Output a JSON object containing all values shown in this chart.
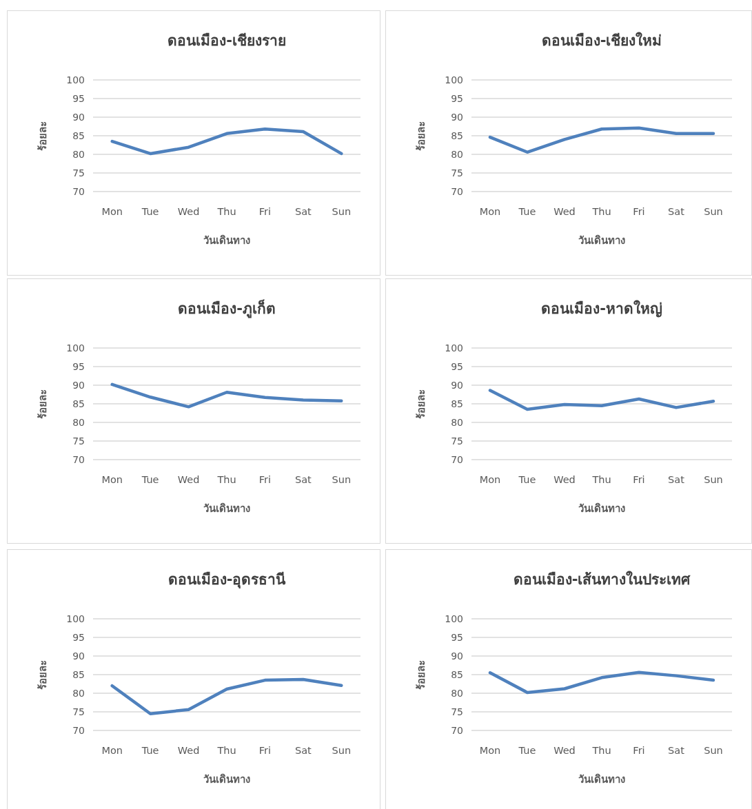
{
  "chart_data": [
    {
      "type": "line",
      "title": "ดอนเมือง-เชียงราย",
      "xlabel": "วันเดินทาง",
      "ylabel": "ร้อยละ",
      "categories": [
        "Mon",
        "Tue",
        "Wed",
        "Thu",
        "Fri",
        "Sat",
        "Sun"
      ],
      "ylim": [
        70,
        100
      ],
      "yticks": [
        70,
        75,
        80,
        85,
        90,
        95,
        100
      ],
      "grid": "y",
      "series": [
        {
          "color": "#4f81bd",
          "values": [
            83.5,
            80.2,
            81.9,
            85.6,
            86.8,
            86.1,
            80.2
          ]
        }
      ]
    },
    {
      "type": "line",
      "title": "ดอนเมือง-เชียงใหม่",
      "xlabel": "วันเดินทาง",
      "ylabel": "ร้อยละ",
      "categories": [
        "Mon",
        "Tue",
        "Wed",
        "Thu",
        "Fri",
        "Sat",
        "Sun"
      ],
      "ylim": [
        70,
        100
      ],
      "yticks": [
        70,
        75,
        80,
        85,
        90,
        95,
        100
      ],
      "grid": "y",
      "series": [
        {
          "color": "#4f81bd",
          "values": [
            84.6,
            80.6,
            84.0,
            86.8,
            87.1,
            85.6,
            85.6
          ]
        }
      ]
    },
    {
      "type": "line",
      "title": "ดอนเมือง-ภูเก็ต",
      "xlabel": "วันเดินทาง",
      "ylabel": "ร้อยละ",
      "categories": [
        "Mon",
        "Tue",
        "Wed",
        "Thu",
        "Fri",
        "Sat",
        "Sun"
      ],
      "ylim": [
        70,
        100
      ],
      "yticks": [
        70,
        75,
        80,
        85,
        90,
        95,
        100
      ],
      "grid": "y",
      "series": [
        {
          "color": "#4f81bd",
          "values": [
            90.2,
            86.8,
            84.2,
            88.1,
            86.7,
            86.0,
            85.8
          ]
        }
      ]
    },
    {
      "type": "line",
      "title": "ดอนเมือง-หาดใหญ่",
      "xlabel": "วันเดินทาง",
      "ylabel": "ร้อยละ",
      "categories": [
        "Mon",
        "Tue",
        "Wed",
        "Thu",
        "Fri",
        "Sat",
        "Sun"
      ],
      "ylim": [
        70,
        100
      ],
      "yticks": [
        70,
        75,
        80,
        85,
        90,
        95,
        100
      ],
      "grid": "y",
      "series": [
        {
          "color": "#4f81bd",
          "values": [
            88.6,
            83.5,
            84.8,
            84.5,
            86.3,
            84.0,
            85.7
          ]
        }
      ]
    },
    {
      "type": "line",
      "title": "ดอนเมือง-อุดรธานี",
      "xlabel": "วันเดินทาง",
      "ylabel": "ร้อยละ",
      "categories": [
        "Mon",
        "Tue",
        "Wed",
        "Thu",
        "Fri",
        "Sat",
        "Sun"
      ],
      "ylim": [
        70,
        100
      ],
      "yticks": [
        70,
        75,
        80,
        85,
        90,
        95,
        100
      ],
      "grid": "y",
      "series": [
        {
          "color": "#4f81bd",
          "values": [
            82.0,
            74.5,
            75.6,
            81.1,
            83.5,
            83.7,
            82.1
          ]
        }
      ]
    },
    {
      "type": "line",
      "title": "ดอนเมือง-เส้นทางในประเทศ",
      "xlabel": "วันเดินทาง",
      "ylabel": "ร้อยละ",
      "categories": [
        "Mon",
        "Tue",
        "Wed",
        "Thu",
        "Fri",
        "Sat",
        "Sun"
      ],
      "ylim": [
        70,
        100
      ],
      "yticks": [
        70,
        75,
        80,
        85,
        90,
        95,
        100
      ],
      "grid": "y",
      "series": [
        {
          "color": "#4f81bd",
          "values": [
            85.5,
            80.2,
            81.2,
            84.2,
            85.6,
            84.7,
            83.5
          ]
        }
      ]
    }
  ]
}
